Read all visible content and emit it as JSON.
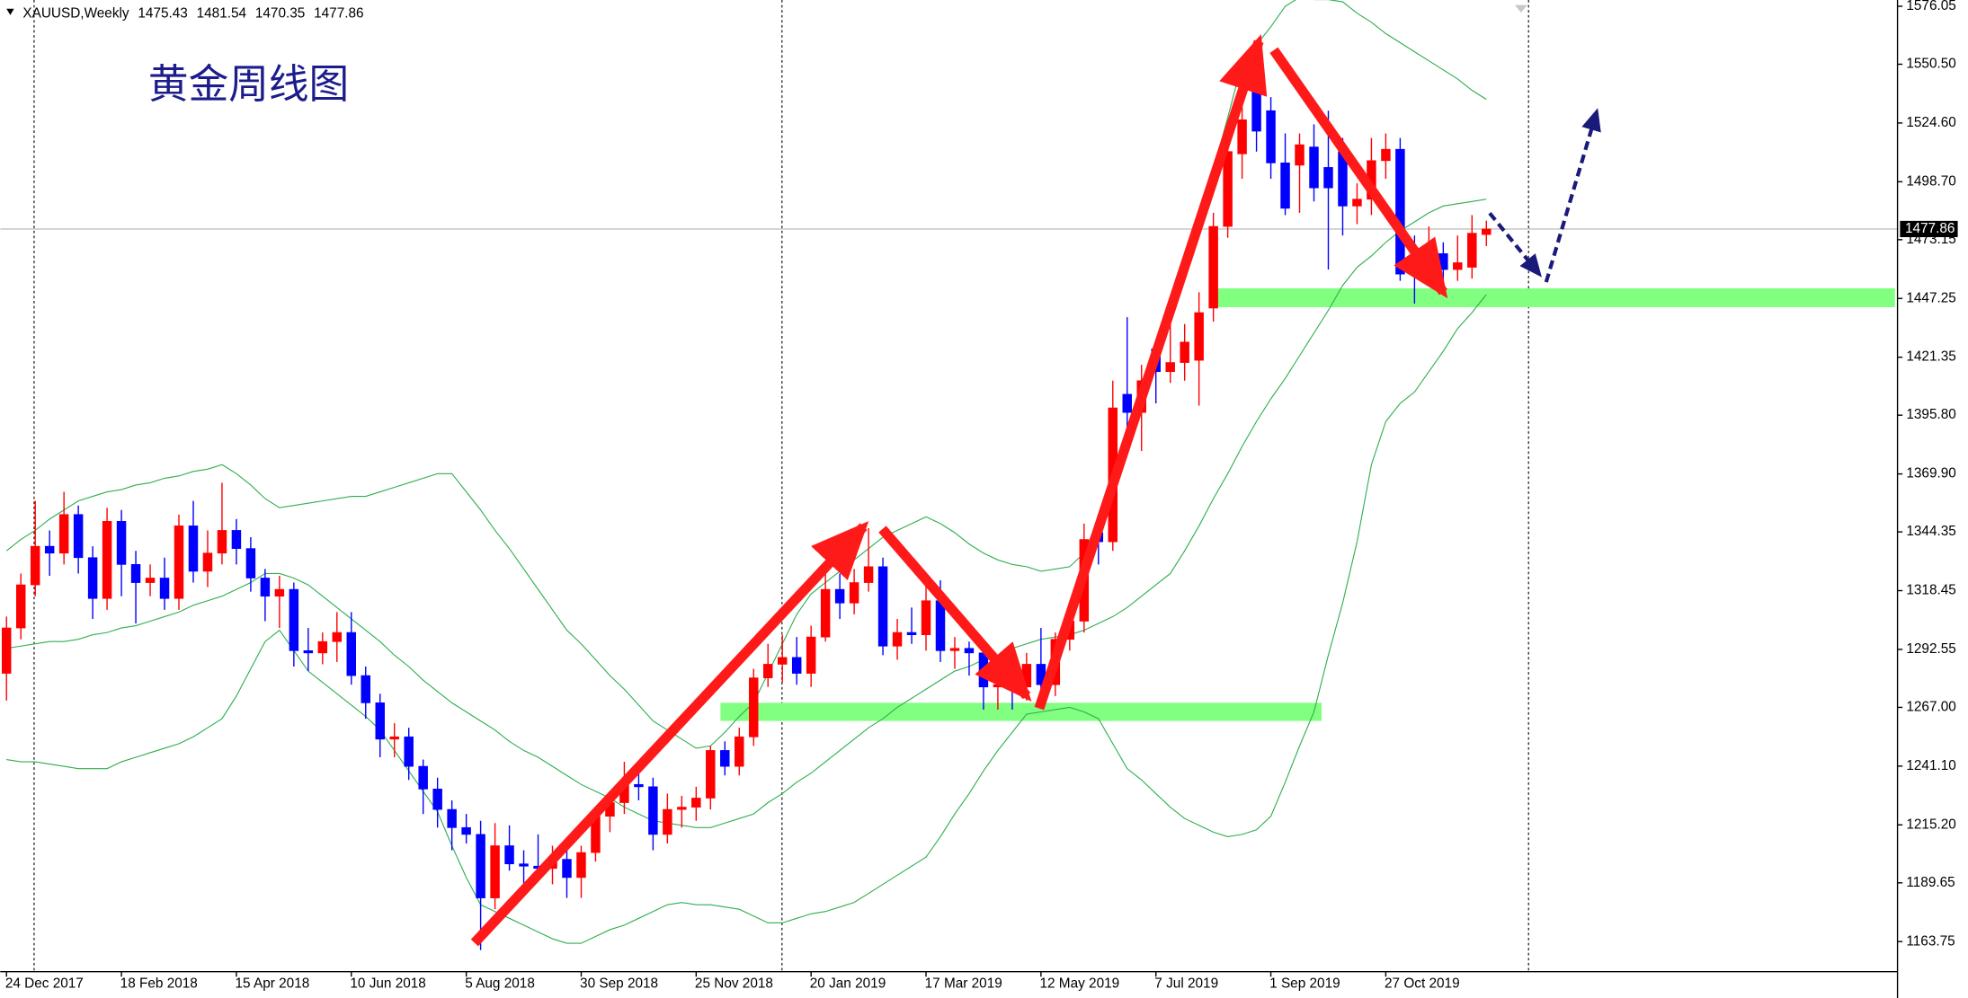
{
  "chart_data": {
    "type": "candlestick",
    "title": "黄金周线图",
    "symbol": "XAUUSD,Weekly",
    "categories": [
      "24 Dec 2017",
      null,
      null,
      null,
      null,
      null,
      null,
      null,
      "18 Feb 2018",
      null,
      null,
      null,
      null,
      null,
      null,
      null,
      "15 Apr 2018",
      null,
      null,
      null,
      null,
      null,
      null,
      null,
      "10 Jun 2018",
      null,
      null,
      null,
      null,
      null,
      null,
      null,
      "5 Aug 2018",
      null,
      null,
      null,
      null,
      null,
      null,
      null,
      "30 Sep 2018",
      null,
      null,
      null,
      null,
      null,
      null,
      null,
      "25 Nov 2018",
      null,
      null,
      null,
      null,
      null,
      null,
      null,
      "20 Jan 2019",
      null,
      null,
      null,
      null,
      null,
      null,
      null,
      "17 Mar 2019",
      null,
      null,
      null,
      null,
      null,
      null,
      null,
      "12 May 2019",
      null,
      null,
      null,
      null,
      null,
      null,
      null,
      "7 Jul 2019",
      null,
      null,
      null,
      null,
      null,
      null,
      null,
      "1 Sep 2019",
      null,
      null,
      null,
      null,
      null,
      null,
      null,
      "27 Oct 2019",
      null,
      null,
      null,
      null,
      null,
      null,
      null
    ],
    "open": [
      1282,
      1302,
      1321,
      1338,
      1335,
      1352,
      1333,
      1315,
      1349,
      1330,
      1322,
      1324,
      1315,
      1347,
      1327,
      1335,
      1345,
      1337,
      1324,
      1316,
      1319,
      1292,
      1291,
      1296,
      1300,
      1281,
      1269,
      1253,
      1254,
      1241,
      1231,
      1222,
      1214,
      1211,
      1183,
      1206,
      1198,
      1197,
      1196,
      1200,
      1192,
      1203,
      1219,
      1225,
      1233,
      1232,
      1211,
      1222,
      1223,
      1227,
      1248,
      1241,
      1254,
      1280,
      1286,
      1289,
      1282,
      1298,
      1319,
      1313,
      1322,
      1329,
      1294,
      1300,
      1299,
      1314,
      1292,
      1293,
      1291,
      1276,
      1277,
      1276,
      1286,
      1277,
      1297,
      1305,
      1344,
      1340,
      1405,
      1397,
      1425,
      1415,
      1419,
      1420,
      1443,
      1479,
      1511,
      1540,
      1530,
      1507,
      1506,
      1514,
      1505,
      1512,
      1488,
      1491,
      1508,
      1513,
      1464,
      1460,
      1467,
      1460,
      1461,
      1475.43
    ],
    "high": [
      1307,
      1326,
      1358,
      1345,
      1362,
      1356,
      1338,
      1355,
      1354,
      1336,
      1330,
      1333,
      1352,
      1358,
      1345,
      1366,
      1350,
      1342,
      1328,
      1325,
      1322,
      1302,
      1300,
      1309,
      1309,
      1285,
      1273,
      1260,
      1258,
      1244,
      1236,
      1226,
      1220,
      1217,
      1216,
      1215,
      1204,
      1211,
      1206,
      1206,
      1206,
      1223,
      1230,
      1243,
      1238,
      1236,
      1229,
      1228,
      1232,
      1250,
      1252,
      1258,
      1284,
      1295,
      1299,
      1298,
      1303,
      1326,
      1326,
      1328,
      1346,
      1333,
      1306,
      1311,
      1322,
      1323,
      1298,
      1296,
      1296,
      1286,
      1282,
      1291,
      1302,
      1300,
      1310,
      1348,
      1352,
      1411,
      1439,
      1418,
      1429,
      1438,
      1436,
      1450,
      1485,
      1518,
      1534,
      1556,
      1536,
      1520,
      1520,
      1524,
      1530,
      1518,
      1498,
      1518,
      1520,
      1518,
      1475,
      1479,
      1472,
      1475,
      1484,
      1481.54
    ],
    "low": [
      1270,
      1297,
      1316,
      1325,
      1330,
      1326,
      1306,
      1310,
      1316,
      1304,
      1316,
      1310,
      1310,
      1322,
      1320,
      1330,
      1330,
      1318,
      1305,
      1302,
      1285,
      1283,
      1286,
      1287,
      1277,
      1262,
      1245,
      1245,
      1235,
      1220,
      1214,
      1204,
      1207,
      1160,
      1178,
      1195,
      1189,
      1193,
      1189,
      1183,
      1183,
      1199,
      1212,
      1220,
      1226,
      1204,
      1207,
      1214,
      1217,
      1222,
      1237,
      1237,
      1250,
      1276,
      1278,
      1277,
      1276,
      1296,
      1306,
      1308,
      1318,
      1290,
      1288,
      1295,
      1292,
      1287,
      1284,
      1281,
      1266,
      1266,
      1266,
      1270,
      1273,
      1272,
      1292,
      1300,
      1330,
      1336,
      1382,
      1380,
      1401,
      1410,
      1411,
      1400,
      1437,
      1474,
      1500,
      1512,
      1500,
      1484,
      1485,
      1490,
      1460,
      1475,
      1480,
      1484,
      1500,
      1455,
      1445,
      1455,
      1452,
      1455,
      1456,
      1470.35
    ],
    "close": [
      1302,
      1321,
      1338,
      1335,
      1352,
      1333,
      1315,
      1349,
      1330,
      1322,
      1324,
      1315,
      1347,
      1327,
      1335,
      1345,
      1337,
      1324,
      1316,
      1319,
      1292,
      1291,
      1296,
      1300,
      1281,
      1269,
      1253,
      1254,
      1241,
      1231,
      1222,
      1214,
      1211,
      1183,
      1206,
      1198,
      1197,
      1196,
      1200,
      1192,
      1203,
      1219,
      1225,
      1233,
      1232,
      1211,
      1222,
      1223,
      1227,
      1248,
      1241,
      1254,
      1280,
      1286,
      1289,
      1282,
      1298,
      1319,
      1313,
      1322,
      1329,
      1294,
      1300,
      1299,
      1314,
      1292,
      1293,
      1291,
      1276,
      1277,
      1276,
      1286,
      1277,
      1297,
      1305,
      1341,
      1340,
      1399,
      1397,
      1411,
      1415,
      1419,
      1428,
      1441,
      1479,
      1512,
      1526,
      1521,
      1507,
      1487,
      1515,
      1496,
      1496,
      1488,
      1491,
      1508,
      1513,
      1458,
      1460,
      1468,
      1460,
      1463,
      1476,
      1477.86
    ],
    "up_color": "#ff0000",
    "down_color": "#0000ff",
    "bands": [
      {
        "color": "#2fae4f",
        "values": [
          1336,
          1341,
          1345,
          1350,
          1354,
          1358,
          1360,
          1362,
          1363,
          1365,
          1366,
          1368,
          1369,
          1371,
          1372,
          1374,
          1370,
          1365,
          1359,
          1355,
          1356,
          1357,
          1358,
          1359,
          1360,
          1360,
          1362,
          1364,
          1366,
          1368,
          1370,
          1370,
          1362,
          1354,
          1345,
          1337,
          1328,
          1319,
          1310,
          1301,
          1295,
          1288,
          1281,
          1275,
          1268,
          1261,
          1257,
          1253,
          1249,
          1250,
          1256,
          1263,
          1269,
          1282,
          1295,
          1308,
          1317,
          1322,
          1327,
          1332,
          1337,
          1342,
          1345,
          1348,
          1351,
          1348,
          1344,
          1339,
          1335,
          1332,
          1330,
          1329,
          1327,
          1328,
          1329,
          1335,
          1350,
          1366,
          1382,
          1400,
          1420,
          1439,
          1458,
          1480,
          1504,
          1527,
          1551,
          1559,
          1567,
          1576,
          1580,
          1579,
          1579,
          1578,
          1573,
          1569,
          1564,
          1560,
          1556,
          1552,
          1548,
          1544,
          1539,
          1535
        ]
      },
      {
        "color": "#2fae4f",
        "values": [
          1293,
          1294,
          1295,
          1296,
          1296,
          1297,
          1299,
          1300,
          1302,
          1303,
          1305,
          1307,
          1309,
          1312,
          1314,
          1316,
          1319,
          1322,
          1326,
          1326,
          1324,
          1321,
          1316,
          1311,
          1306,
          1301,
          1296,
          1290,
          1285,
          1279,
          1274,
          1269,
          1265,
          1261,
          1257,
          1252,
          1248,
          1245,
          1241,
          1237,
          1233,
          1230,
          1227,
          1223,
          1220,
          1217,
          1216,
          1215,
          1214,
          1214,
          1216,
          1218,
          1220,
          1225,
          1229,
          1234,
          1238,
          1243,
          1248,
          1253,
          1258,
          1262,
          1267,
          1271,
          1275,
          1279,
          1283,
          1285,
          1288,
          1290,
          1293,
          1295,
          1297,
          1298,
          1299,
          1301,
          1304,
          1307,
          1311,
          1316,
          1321,
          1326,
          1336,
          1347,
          1359,
          1370,
          1382,
          1393,
          1403,
          1412,
          1422,
          1432,
          1442,
          1453,
          1461,
          1466,
          1472,
          1477,
          1481,
          1485,
          1488,
          1489,
          1490,
          1491
        ]
      },
      {
        "color": "#2fae4f",
        "values": [
          1244,
          1243,
          1243,
          1242,
          1241,
          1240,
          1240,
          1240,
          1243,
          1245,
          1247,
          1249,
          1251,
          1254,
          1258,
          1262,
          1272,
          1284,
          1296,
          1301,
          1292,
          1283,
          1278,
          1273,
          1268,
          1263,
          1257,
          1248,
          1239,
          1230,
          1221,
          1206,
          1192,
          1180,
          1177,
          1174,
          1171,
          1168,
          1165,
          1163,
          1163,
          1166,
          1169,
          1171,
          1174,
          1177,
          1180,
          1181,
          1180,
          1180,
          1179,
          1178,
          1175,
          1172,
          1172,
          1174,
          1176,
          1177,
          1179,
          1181,
          1185,
          1189,
          1193,
          1197,
          1201,
          1210,
          1220,
          1229,
          1239,
          1248,
          1256,
          1264,
          1265,
          1266,
          1267,
          1265,
          1262,
          1251,
          1240,
          1235,
          1229,
          1223,
          1218,
          1215,
          1212,
          1210,
          1211,
          1213,
          1219,
          1234,
          1250,
          1265,
          1290,
          1313,
          1340,
          1374,
          1393,
          1401,
          1406,
          1415,
          1424,
          1434,
          1441,
          1449
        ]
      }
    ],
    "zones": [
      {
        "low": 1261,
        "high": 1269,
        "color": "#80ff80"
      },
      {
        "low": 1443.4,
        "high": 1451.7,
        "color": "#80ff80"
      }
    ],
    "ylim": [
      1150.49,
      1578.81
    ],
    "yticks": [
      1576.05,
      {
        "value": 1550.5,
        "label": "1550.50"
      },
      {
        "value": 1524.6,
        "label": "1524.60"
      },
      {
        "value": 1498.7,
        "label": "1498.70"
      },
      1473.15,
      1447.25,
      1421.35,
      {
        "value": 1395.8,
        "label": "1395.80"
      },
      {
        "value": 1369.9,
        "label": "1369.90"
      },
      1344.35,
      1318.45,
      1292.55,
      {
        "value": 1267,
        "label": "1267.00"
      },
      {
        "value": 1241.1,
        "label": "1241.10"
      },
      {
        "value": 1215.2,
        "label": "1215.20"
      },
      1189.65,
      1163.75
    ],
    "grid": false
  }
}
